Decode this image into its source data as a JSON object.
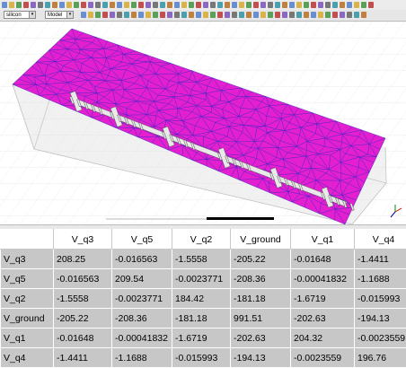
{
  "toolbar": {
    "combo1_value": "silicon",
    "combo2_value": "Model"
  },
  "matrix": {
    "columns": [
      "V_q3",
      "V_q5",
      "V_q2",
      "V_ground",
      "V_q1",
      "V_q4"
    ],
    "rows": [
      {
        "label": "V_q3",
        "values": [
          "208.25",
          "-0.016563",
          "-1.5558",
          "-205.22",
          "-0.01648",
          "-1.4411"
        ]
      },
      {
        "label": "V_q5",
        "values": [
          "-0.016563",
          "209.54",
          "-0.0023771",
          "-208.36",
          "-0.00041832",
          "-1.1688"
        ]
      },
      {
        "label": "V_q2",
        "values": [
          "-1.5558",
          "-0.0023771",
          "184.42",
          "-181.18",
          "-1.6719",
          "-0.015993"
        ]
      },
      {
        "label": "V_ground",
        "values": [
          "-205.22",
          "-208.36",
          "-181.18",
          "991.51",
          "-202.63",
          "-194.13"
        ]
      },
      {
        "label": "V_q1",
        "values": [
          "-0.01648",
          "-0.00041832",
          "-1.6719",
          "-202.63",
          "204.32",
          "-0.0023559"
        ]
      },
      {
        "label": "V_q4",
        "values": [
          "-1.4411",
          "-1.1688",
          "-0.015993",
          "-194.13",
          "-0.0023559",
          "196.76"
        ]
      }
    ]
  }
}
